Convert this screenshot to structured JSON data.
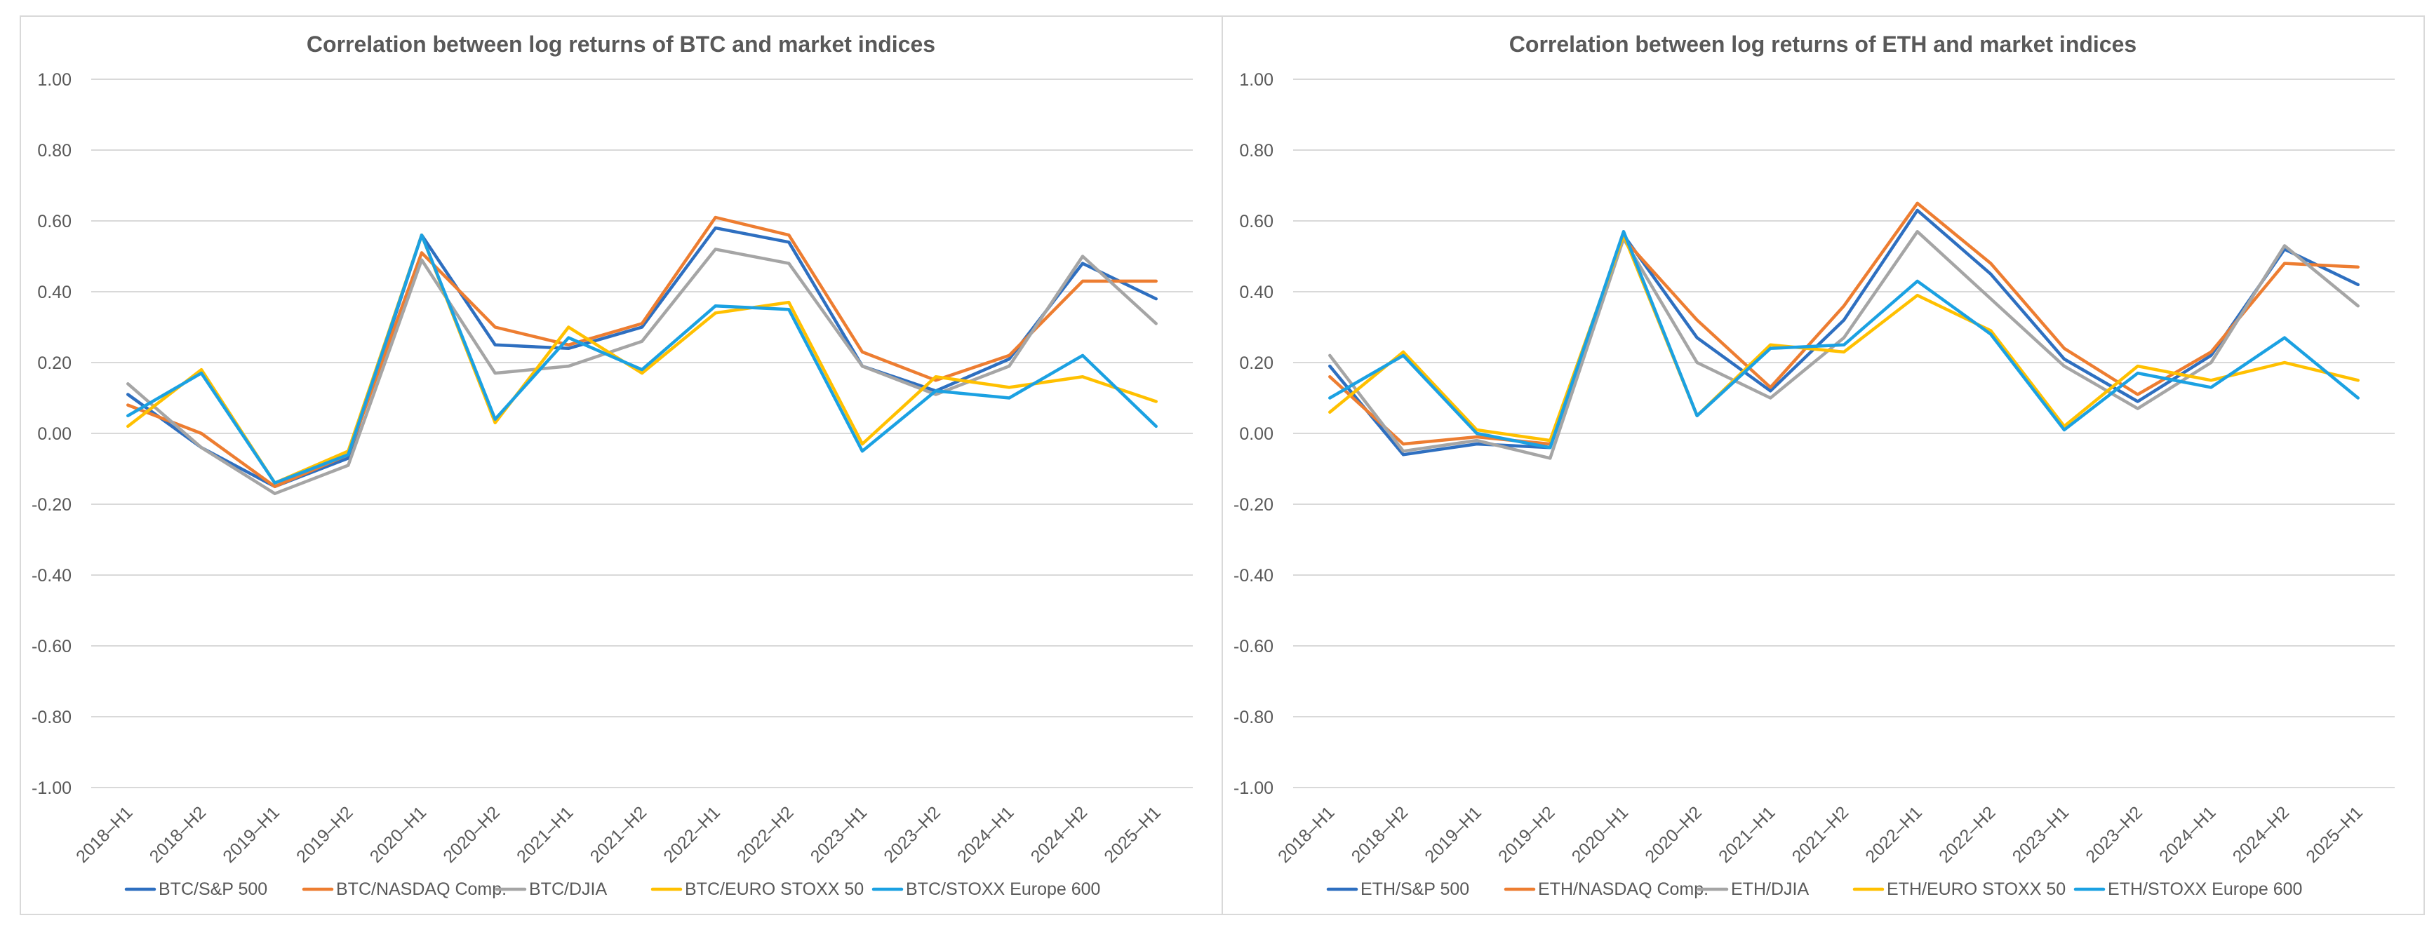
{
  "chart_data": [
    {
      "type": "line",
      "title": "Correlation between log returns of BTC and market indices",
      "categories": [
        "2018–H1",
        "2018–H2",
        "2019–H1",
        "2019–H2",
        "2020–H1",
        "2020–H2",
        "2021–H1",
        "2021–H2",
        "2022–H1",
        "2022–H2",
        "2023–H1",
        "2023–H2",
        "2024–H1",
        "2024–H2",
        "2025–H1"
      ],
      "ylim": [
        -1.0,
        1.0
      ],
      "yticks": [
        "1.00",
        "0.80",
        "0.60",
        "0.40",
        "0.20",
        "0.00",
        "-0.20",
        "-0.40",
        "-0.60",
        "-0.80",
        "-1.00"
      ],
      "grid": true,
      "legend_position": "bottom",
      "series": [
        {
          "name": "BTC/S&P 500",
          "color": "#2e6fc0",
          "values": [
            0.11,
            -0.04,
            -0.15,
            -0.07,
            0.56,
            0.25,
            0.24,
            0.3,
            0.58,
            0.54,
            0.19,
            0.12,
            0.21,
            0.48,
            0.38
          ]
        },
        {
          "name": "BTC/NASDAQ Comp.",
          "color": "#ed7d31",
          "values": [
            0.08,
            0.0,
            -0.15,
            -0.06,
            0.51,
            0.3,
            0.25,
            0.31,
            0.61,
            0.56,
            0.23,
            0.15,
            0.22,
            0.43,
            0.43
          ]
        },
        {
          "name": "BTC/DJIA",
          "color": "#a5a5a5",
          "values": [
            0.14,
            -0.04,
            -0.17,
            -0.09,
            0.49,
            0.17,
            0.19,
            0.26,
            0.52,
            0.48,
            0.19,
            0.11,
            0.19,
            0.5,
            0.31
          ]
        },
        {
          "name": "BTC/EURO STOXX 50",
          "color": "#ffc000",
          "values": [
            0.02,
            0.18,
            -0.14,
            -0.05,
            0.56,
            0.03,
            0.3,
            0.17,
            0.34,
            0.37,
            -0.03,
            0.16,
            0.13,
            0.16,
            0.09
          ]
        },
        {
          "name": "BTC/STOXX Europe 600",
          "color": "#1ba1e2",
          "values": [
            0.05,
            0.17,
            -0.14,
            -0.06,
            0.56,
            0.04,
            0.27,
            0.18,
            0.36,
            0.35,
            -0.05,
            0.12,
            0.1,
            0.22,
            0.02
          ]
        }
      ]
    },
    {
      "type": "line",
      "title": "Correlation between log returns of ETH and market indices",
      "categories": [
        "2018–H1",
        "2018–H2",
        "2019–H1",
        "2019–H2",
        "2020–H1",
        "2020–H2",
        "2021–H1",
        "2021–H2",
        "2022–H1",
        "2022–H2",
        "2023–H1",
        "2023–H2",
        "2024–H1",
        "2024–H2",
        "2025–H1"
      ],
      "ylim": [
        -1.0,
        1.0
      ],
      "yticks": [
        "1.00",
        "0.80",
        "0.60",
        "0.40",
        "0.20",
        "0.00",
        "-0.20",
        "-0.40",
        "-0.60",
        "-0.80",
        "-1.00"
      ],
      "grid": true,
      "legend_position": "bottom",
      "series": [
        {
          "name": "ETH/S&P 500",
          "color": "#2e6fc0",
          "values": [
            0.19,
            -0.06,
            -0.03,
            -0.04,
            0.56,
            0.27,
            0.12,
            0.32,
            0.63,
            0.45,
            0.21,
            0.09,
            0.22,
            0.52,
            0.42
          ]
        },
        {
          "name": "ETH/NASDAQ Comp.",
          "color": "#ed7d31",
          "values": [
            0.16,
            -0.03,
            -0.01,
            -0.03,
            0.55,
            0.32,
            0.13,
            0.36,
            0.65,
            0.48,
            0.24,
            0.11,
            0.23,
            0.48,
            0.47
          ]
        },
        {
          "name": "ETH/DJIA",
          "color": "#a5a5a5",
          "values": [
            0.22,
            -0.05,
            -0.02,
            -0.07,
            0.55,
            0.2,
            0.1,
            0.27,
            0.57,
            0.38,
            0.19,
            0.07,
            0.2,
            0.53,
            0.36
          ]
        },
        {
          "name": "ETH/EURO STOXX 50",
          "color": "#ffc000",
          "values": [
            0.06,
            0.23,
            0.01,
            -0.02,
            0.56,
            0.05,
            0.25,
            0.23,
            0.39,
            0.29,
            0.02,
            0.19,
            0.15,
            0.2,
            0.15
          ]
        },
        {
          "name": "ETH/STOXX Europe 600",
          "color": "#1ba1e2",
          "values": [
            0.1,
            0.22,
            0.0,
            -0.04,
            0.57,
            0.05,
            0.24,
            0.25,
            0.43,
            0.28,
            0.01,
            0.17,
            0.13,
            0.27,
            0.1
          ]
        }
      ]
    }
  ]
}
